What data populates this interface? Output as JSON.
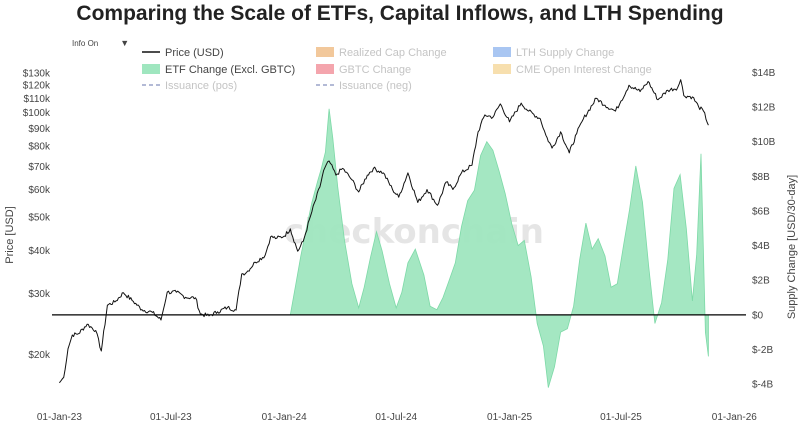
{
  "header": {
    "info_toggle_label": "Info On",
    "info_toggle_caret": "▼"
  },
  "watermark": "checkonchain",
  "colors": {
    "price_line": "#111111",
    "etf_fill": "#9fe6bf",
    "etf_stroke": "#7dd9a7",
    "realized_cap": "#f2c89b",
    "lth_supply": "#a9c6f2",
    "gbtc": "#f4a5ad",
    "cme_oi": "#f7dfae",
    "issuance": "#9aa4c8",
    "zero_line": "#000000"
  },
  "chart_data": {
    "type": "line",
    "title": "Comparing the Scale of ETFs, Capital Inflows, and LTH Spending",
    "x_ticks": [
      "01-Jan-23",
      "01-Jul-23",
      "01-Jan-24",
      "01-Jul-24",
      "01-Jan-25",
      "01-Jul-25",
      "01-Jan-26"
    ],
    "x_range": [
      "2022-12-20",
      "2026-01-20"
    ],
    "y_left": {
      "label": "Price [USD]",
      "scale": "log",
      "range": [
        15000,
        140000
      ],
      "ticks": [
        {
          "value": 20000,
          "label": "$20k"
        },
        {
          "value": 30000,
          "label": "$30k"
        },
        {
          "value": 40000,
          "label": "$40k"
        },
        {
          "value": 50000,
          "label": "$50k"
        },
        {
          "value": 60000,
          "label": "$60k"
        },
        {
          "value": 70000,
          "label": "$70k"
        },
        {
          "value": 80000,
          "label": "$80k"
        },
        {
          "value": 90000,
          "label": "$90k"
        },
        {
          "value": 100000,
          "label": "$100k"
        },
        {
          "value": 110000,
          "label": "$110k"
        },
        {
          "value": 120000,
          "label": "$120k"
        },
        {
          "value": 130000,
          "label": "$130k"
        }
      ]
    },
    "y_right": {
      "label": "Supply Change [USD/30-day]",
      "range": [
        -4.8,
        14.6
      ],
      "ticks": [
        {
          "value": -4,
          "label": "$-4B"
        },
        {
          "value": -2,
          "label": "$-2B"
        },
        {
          "value": 0,
          "label": "$0"
        },
        {
          "value": 2,
          "label": "$2B"
        },
        {
          "value": 4,
          "label": "$4B"
        },
        {
          "value": 6,
          "label": "$6B"
        },
        {
          "value": 8,
          "label": "$8B"
        },
        {
          "value": 10,
          "label": "$10B"
        },
        {
          "value": 12,
          "label": "$12B"
        },
        {
          "value": 14,
          "label": "$14B"
        }
      ]
    },
    "legend": [
      {
        "name": "Price (USD)",
        "style": "line",
        "color": "#111111"
      },
      {
        "name": "Realized Cap Change",
        "style": "box",
        "color": "#f2c89b"
      },
      {
        "name": "LTH Supply Change",
        "style": "box",
        "color": "#a9c6f2"
      },
      {
        "name": "ETF Change (Excl. GBTC)",
        "style": "box",
        "color": "#9fe6bf"
      },
      {
        "name": "GBTC Change",
        "style": "box",
        "color": "#f4a5ad"
      },
      {
        "name": "CME Open Interest Change",
        "style": "box",
        "color": "#f7dfae"
      },
      {
        "name": "Issuance (pos)",
        "style": "dash",
        "color": "#9aa4c8"
      },
      {
        "name": "Issuance (neg)",
        "style": "dash",
        "color": "#9aa4c8"
      }
    ],
    "series": [
      {
        "name": "Price (USD)",
        "axis": "left",
        "x": [
          "2023-01-01",
          "2023-01-08",
          "2023-01-15",
          "2023-01-22",
          "2023-02-01",
          "2023-02-15",
          "2023-03-01",
          "2023-03-10",
          "2023-03-20",
          "2023-04-01",
          "2023-04-15",
          "2023-05-01",
          "2023-05-15",
          "2023-06-01",
          "2023-06-15",
          "2023-06-25",
          "2023-07-10",
          "2023-07-25",
          "2023-08-10",
          "2023-08-18",
          "2023-09-01",
          "2023-09-15",
          "2023-10-01",
          "2023-10-15",
          "2023-10-24",
          "2023-11-01",
          "2023-11-15",
          "2023-12-01",
          "2023-12-10",
          "2023-12-20",
          "2024-01-01",
          "2024-01-11",
          "2024-01-23",
          "2024-02-01",
          "2024-02-15",
          "2024-02-28",
          "2024-03-05",
          "2024-03-14",
          "2024-03-25",
          "2024-04-05",
          "2024-04-20",
          "2024-05-01",
          "2024-05-15",
          "2024-05-25",
          "2024-06-10",
          "2024-06-25",
          "2024-07-05",
          "2024-07-20",
          "2024-08-05",
          "2024-08-20",
          "2024-09-06",
          "2024-09-20",
          "2024-10-01",
          "2024-10-15",
          "2024-11-01",
          "2024-11-11",
          "2024-11-22",
          "2024-12-05",
          "2024-12-17",
          "2025-01-01",
          "2025-01-20",
          "2025-02-01",
          "2025-02-20",
          "2025-03-01",
          "2025-03-11",
          "2025-03-25",
          "2025-04-08",
          "2025-04-20",
          "2025-05-01",
          "2025-05-22",
          "2025-06-05",
          "2025-06-22",
          "2025-07-01",
          "2025-07-14",
          "2025-08-01",
          "2025-08-14",
          "2025-08-30",
          "2025-09-15",
          "2025-10-01",
          "2025-10-06",
          "2025-10-11",
          "2025-10-25",
          "2025-11-04",
          "2025-11-12",
          "2025-11-20"
        ],
        "values": [
          16600,
          17200,
          20800,
          22800,
          23000,
          24500,
          23500,
          20500,
          27800,
          28400,
          30200,
          28500,
          27000,
          26500,
          25200,
          30300,
          30300,
          29300,
          29200,
          26200,
          25900,
          26600,
          27400,
          26900,
          34200,
          34600,
          37000,
          38700,
          43800,
          43400,
          44000,
          46200,
          39800,
          42500,
          51800,
          61000,
          68000,
          72500,
          66000,
          69000,
          64000,
          59000,
          66000,
          69000,
          67000,
          60000,
          57000,
          67000,
          55000,
          60000,
          54000,
          63000,
          60000,
          67000,
          70500,
          88000,
          98500,
          97000,
          106000,
          94000,
          106500,
          101000,
          96000,
          86000,
          79000,
          88000,
          76500,
          87000,
          96000,
          110000,
          105000,
          101000,
          108000,
          120000,
          115000,
          123000,
          109000,
          116000,
          118000,
          124500,
          112000,
          111000,
          104000,
          101000,
          92000
        ]
      },
      {
        "name": "ETF Change (Excl. GBTC)",
        "axis": "right",
        "x": [
          "2024-01-11",
          "2024-01-20",
          "2024-01-28",
          "2024-02-05",
          "2024-02-15",
          "2024-02-25",
          "2024-03-01",
          "2024-03-08",
          "2024-03-14",
          "2024-03-20",
          "2024-03-28",
          "2024-04-08",
          "2024-04-20",
          "2024-05-01",
          "2024-05-10",
          "2024-05-20",
          "2024-05-30",
          "2024-06-08",
          "2024-06-20",
          "2024-07-01",
          "2024-07-10",
          "2024-07-20",
          "2024-08-01",
          "2024-08-15",
          "2024-08-25",
          "2024-09-05",
          "2024-09-15",
          "2024-09-25",
          "2024-10-05",
          "2024-10-15",
          "2024-10-25",
          "2024-11-05",
          "2024-11-15",
          "2024-11-25",
          "2024-12-05",
          "2024-12-15",
          "2024-12-25",
          "2025-01-05",
          "2025-01-15",
          "2025-01-25",
          "2025-02-05",
          "2025-02-15",
          "2025-02-25",
          "2025-03-05",
          "2025-03-15",
          "2025-03-25",
          "2025-04-05",
          "2025-04-15",
          "2025-04-25",
          "2025-05-05",
          "2025-05-15",
          "2025-05-25",
          "2025-06-05",
          "2025-06-15",
          "2025-06-25",
          "2025-07-05",
          "2025-07-15",
          "2025-07-25",
          "2025-08-05",
          "2025-08-15",
          "2025-08-25",
          "2025-09-05",
          "2025-09-15",
          "2025-09-25",
          "2025-10-05",
          "2025-10-15",
          "2025-10-25",
          "2025-11-01",
          "2025-11-08",
          "2025-11-15",
          "2025-11-20"
        ],
        "values": [
          0,
          1.8,
          3.4,
          4.8,
          6.5,
          7.8,
          8.4,
          9.4,
          11.9,
          10.2,
          7.4,
          4.3,
          1.8,
          0.4,
          1.6,
          3.3,
          4.8,
          3.7,
          1.8,
          0.4,
          1.3,
          3.0,
          3.8,
          2.3,
          0.5,
          0.3,
          1.0,
          2.0,
          3.0,
          5.1,
          6.6,
          7.2,
          9.2,
          10.0,
          9.5,
          8.3,
          7.0,
          5.2,
          4.0,
          4.3,
          2.2,
          -0.5,
          -1.8,
          -4.2,
          -3.0,
          -1.0,
          -0.8,
          0.5,
          3.2,
          5.3,
          3.8,
          4.4,
          3.4,
          1.6,
          1.8,
          4.0,
          6.1,
          8.6,
          6.5,
          2.8,
          -0.5,
          0.7,
          3.2,
          7.3,
          8.1,
          5.0,
          0.8,
          3.5,
          9.3,
          -1.0,
          -2.4
        ]
      }
    ]
  }
}
